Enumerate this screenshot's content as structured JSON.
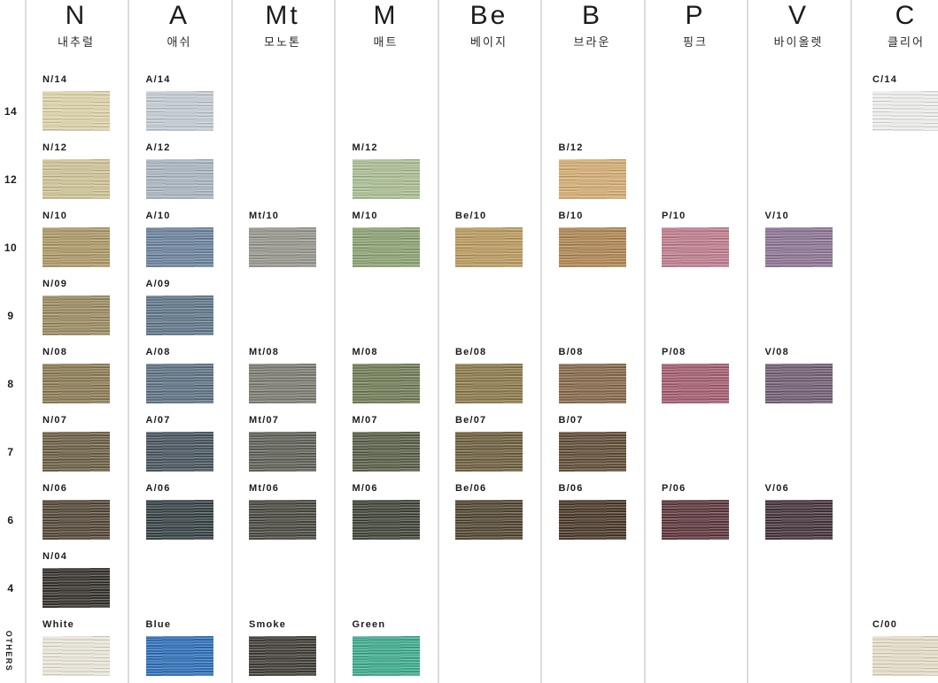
{
  "page": {
    "background_color": "#FFFFFF",
    "divider_color": "#DCDCDC"
  },
  "chart_data": {
    "type": "table",
    "row_labels": [
      "14",
      "12",
      "10",
      "9",
      "8",
      "7",
      "6",
      "4"
    ],
    "others_row_label": "OTHERS",
    "columns": [
      {
        "code": "N",
        "name_kr": "내추럴",
        "swatches": [
          {
            "label": "N/14",
            "row": "14",
            "color": "#DCD2A8"
          },
          {
            "label": "N/12",
            "row": "12",
            "color": "#CEC294"
          },
          {
            "label": "N/10",
            "row": "10",
            "color": "#AB9765"
          },
          {
            "label": "N/09",
            "row": "9",
            "color": "#99895E"
          },
          {
            "label": "N/08",
            "row": "8",
            "color": "#8A7A52"
          },
          {
            "label": "N/07",
            "row": "7",
            "color": "#6B5E43"
          },
          {
            "label": "N/06",
            "row": "6",
            "color": "#524636"
          },
          {
            "label": "N/04",
            "row": "4",
            "color": "#34302A"
          },
          {
            "label": "White",
            "row": "others",
            "color": "#E9E5D9"
          }
        ]
      },
      {
        "code": "A",
        "name_kr": "애쉬",
        "swatches": [
          {
            "label": "A/14",
            "row": "14",
            "color": "#C2CBD1"
          },
          {
            "label": "A/12",
            "row": "12",
            "color": "#A8B4C0"
          },
          {
            "label": "A/10",
            "row": "10",
            "color": "#69819B"
          },
          {
            "label": "A/09",
            "row": "9",
            "color": "#5E7588"
          },
          {
            "label": "A/08",
            "row": "8",
            "color": "#5C7082"
          },
          {
            "label": "A/07",
            "row": "7",
            "color": "#46535D"
          },
          {
            "label": "A/06",
            "row": "6",
            "color": "#344043"
          },
          {
            "label": "Blue",
            "row": "others",
            "color": "#2B6DB6"
          }
        ]
      },
      {
        "code": "Mt",
        "name_kr": "모노톤",
        "swatches": [
          {
            "label": "Mt/10",
            "row": "10",
            "color": "#95958C"
          },
          {
            "label": "Mt/08",
            "row": "8",
            "color": "#7A7A70"
          },
          {
            "label": "Mt/07",
            "row": "7",
            "color": "#5D5F55"
          },
          {
            "label": "Mt/06",
            "row": "6",
            "color": "#47473F"
          },
          {
            "label": "Smoke",
            "row": "others",
            "color": "#3E3B34"
          }
        ]
      },
      {
        "code": "M",
        "name_kr": "매트",
        "swatches": [
          {
            "label": "M/12",
            "row": "12",
            "color": "#A9BD92"
          },
          {
            "label": "M/10",
            "row": "10",
            "color": "#8AA171"
          },
          {
            "label": "M/08",
            "row": "8",
            "color": "#6F7B55"
          },
          {
            "label": "M/07",
            "row": "7",
            "color": "#575D46"
          },
          {
            "label": "M/06",
            "row": "6",
            "color": "#3E4337"
          },
          {
            "label": "Green",
            "row": "others",
            "color": "#3BAA8C"
          }
        ]
      },
      {
        "code": "Be",
        "name_kr": "베이지",
        "swatches": [
          {
            "label": "Be/10",
            "row": "10",
            "color": "#B9995C"
          },
          {
            "label": "Be/08",
            "row": "8",
            "color": "#8B7747"
          },
          {
            "label": "Be/07",
            "row": "7",
            "color": "#6C5D3C"
          },
          {
            "label": "Be/06",
            "row": "6",
            "color": "#4F442F"
          }
        ]
      },
      {
        "code": "B",
        "name_kr": "브라운",
        "swatches": [
          {
            "label": "B/12",
            "row": "12",
            "color": "#D3AB72"
          },
          {
            "label": "B/10",
            "row": "10",
            "color": "#AE8450"
          },
          {
            "label": "B/08",
            "row": "8",
            "color": "#846749"
          },
          {
            "label": "B/07",
            "row": "7",
            "color": "#5F4B34"
          },
          {
            "label": "B/06",
            "row": "6",
            "color": "#473626"
          }
        ]
      },
      {
        "code": "P",
        "name_kr": "핑크",
        "swatches": [
          {
            "label": "P/10",
            "row": "10",
            "color": "#BD7B8C"
          },
          {
            "label": "P/08",
            "row": "8",
            "color": "#A25B6E"
          },
          {
            "label": "P/06",
            "row": "6",
            "color": "#5B343B"
          }
        ]
      },
      {
        "code": "V",
        "name_kr": "바이올렛",
        "swatches": [
          {
            "label": "V/10",
            "row": "10",
            "color": "#8B7292"
          },
          {
            "label": "V/08",
            "row": "8",
            "color": "#705C72"
          },
          {
            "label": "V/06",
            "row": "6",
            "color": "#433139"
          }
        ]
      },
      {
        "code": "C",
        "name_kr": "클리어",
        "swatches": [
          {
            "label": "C/14",
            "row": "14",
            "color": "#ECECEB"
          },
          {
            "label": "C/00",
            "row": "others",
            "color": "#E5DDC7"
          }
        ]
      }
    ]
  }
}
